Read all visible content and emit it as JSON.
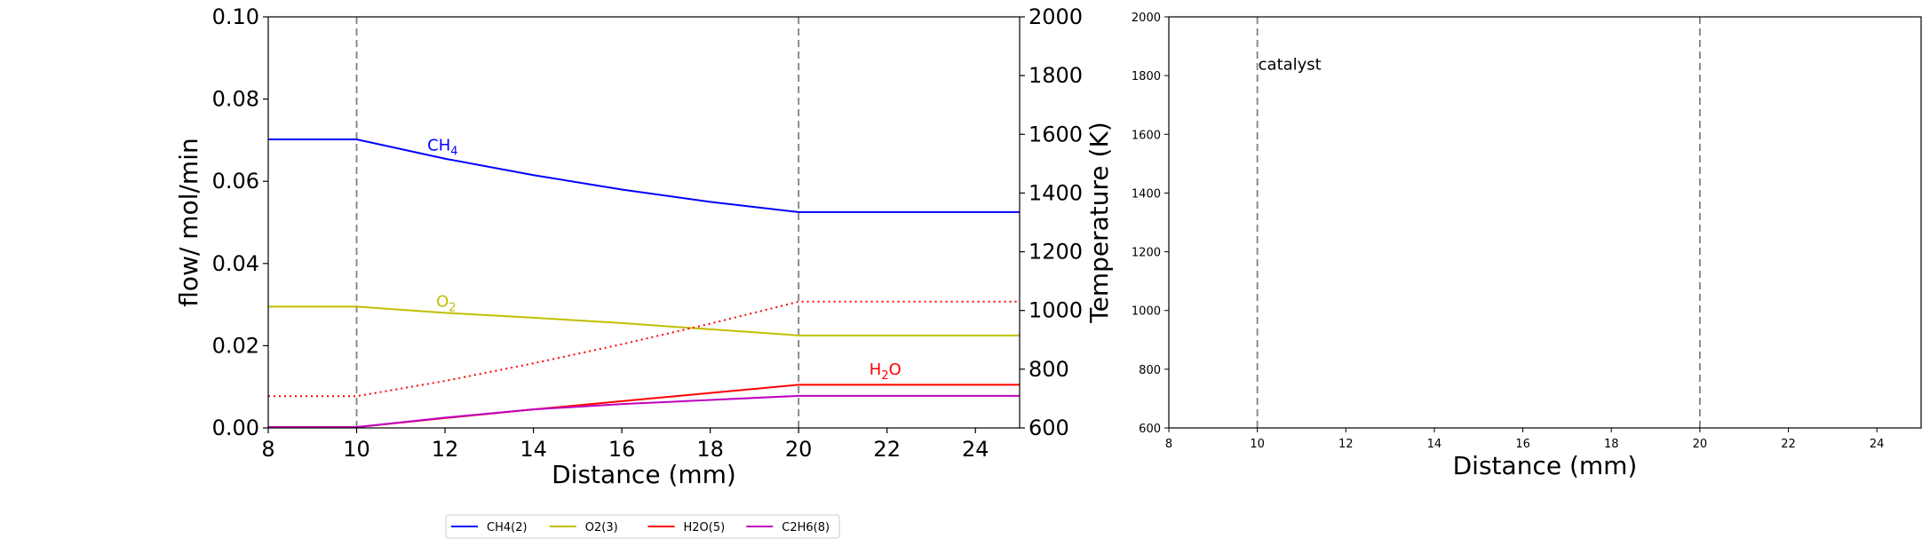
{
  "chart_data": [
    {
      "type": "line",
      "xlabel": "Distance (mm)",
      "ylabel": "flow/ mol/min",
      "ylabel_right": "Temperature (K)",
      "xlim": [
        8,
        25
      ],
      "ylim": [
        0,
        0.1
      ],
      "ylim_right": [
        600,
        2000
      ],
      "xticks": [
        "8",
        "10",
        "12",
        "14",
        "16",
        "18",
        "20",
        "22",
        "24"
      ],
      "yticks": [
        "0.00",
        "0.02",
        "0.04",
        "0.06",
        "0.08",
        "0.10"
      ],
      "yticks_right": [
        "600",
        "800",
        "1000",
        "1200",
        "1400",
        "1600",
        "1800",
        "2000"
      ],
      "vlines": [
        10,
        20
      ],
      "series": [
        {
          "name": "CH4(2)",
          "color": "#0000ff",
          "style": "solid",
          "x": [
            8,
            10,
            12,
            14,
            16,
            18,
            20,
            25
          ],
          "y": [
            0.0702,
            0.0702,
            0.0655,
            0.0615,
            0.058,
            0.055,
            0.0525,
            0.0525
          ]
        },
        {
          "name": "O2(3)",
          "color": "#bfbf00",
          "style": "solid",
          "x": [
            8,
            10,
            12,
            14,
            16,
            18,
            20,
            25
          ],
          "y": [
            0.0295,
            0.0295,
            0.028,
            0.0268,
            0.0255,
            0.024,
            0.0225,
            0.0225
          ]
        },
        {
          "name": "H2O(5)",
          "color": "#ff0000",
          "style": "solid",
          "x": [
            8,
            10,
            12,
            14,
            16,
            18,
            20,
            25
          ],
          "y": [
            0.0002,
            0.0002,
            0.0024,
            0.0045,
            0.0065,
            0.0085,
            0.0105,
            0.0105
          ]
        },
        {
          "name": "C2H6(8)",
          "color": "#bf00bf",
          "style": "solid",
          "x": [
            8,
            10,
            12,
            14,
            16,
            18,
            20,
            25
          ],
          "y": [
            0.0002,
            0.0002,
            0.0025,
            0.0045,
            0.0058,
            0.0068,
            0.0078,
            0.0078
          ]
        },
        {
          "name": "",
          "axis": "right",
          "color": "#ff0000",
          "style": "dotted",
          "x": [
            8,
            10,
            12,
            14,
            16,
            18,
            20,
            25
          ],
          "y": [
            708,
            708,
            760,
            820,
            885,
            955,
            1030,
            1030
          ]
        }
      ],
      "annotations": [
        {
          "base": "CH",
          "sub": "4",
          "x": 11.6,
          "y": 0.0675,
          "color": "#0000ff"
        },
        {
          "base": "O",
          "sub": "2",
          "x": 11.8,
          "y": 0.0295,
          "color": "#bfbf00"
        },
        {
          "base": "H",
          "sub": "2",
          "tail": "O",
          "x": 21.6,
          "y": 0.013,
          "color": "#ff0000"
        }
      ]
    },
    {
      "type": "line",
      "xlabel": "Distance (mm)",
      "xlim": [
        8,
        25
      ],
      "ylim": [
        600,
        2000
      ],
      "xticks": [
        "8",
        "10",
        "12",
        "14",
        "16",
        "18",
        "20",
        "22",
        "24"
      ],
      "yticks": [
        "600",
        "800",
        "1000",
        "1200",
        "1400",
        "1600",
        "1800",
        "2000"
      ],
      "vlines": [
        10,
        20
      ],
      "text_annotation": "catalyst",
      "text_pos": [
        10,
        1820
      ],
      "series": []
    }
  ],
  "legend": {
    "placement": "bottom-center",
    "items": [
      {
        "label": "CH4(2)",
        "color": "#0000ff"
      },
      {
        "label": "O2(3)",
        "color": "#bfbf00"
      },
      {
        "label": "H2O(5)",
        "color": "#ff0000"
      },
      {
        "label": "C2H6(8)",
        "color": "#bf00bf"
      }
    ]
  }
}
